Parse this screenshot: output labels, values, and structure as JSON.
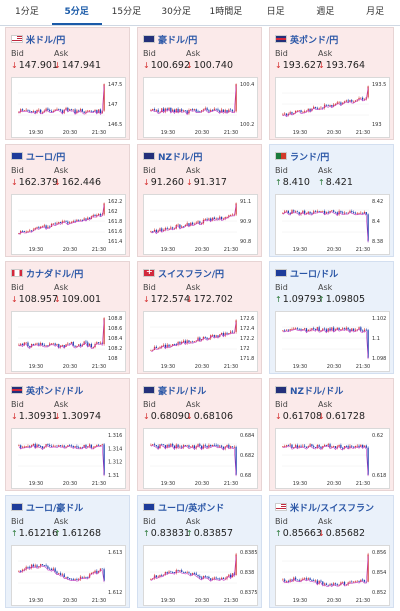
{
  "tabs": [
    "1分足",
    "5分足",
    "15分足",
    "30分足",
    "1時間足",
    "日足",
    "週足",
    "月足"
  ],
  "active_tab": "5分足",
  "bid_label": "Bid",
  "ask_label": "Ask",
  "x_ticks": [
    "19:30",
    "20:30",
    "21:30"
  ],
  "cards": [
    {
      "flag": "us",
      "name": "米ドル/円",
      "bg": "red",
      "bid": "147.901",
      "ask": "147.941",
      "bid_dir": "down",
      "ask_dir": "down",
      "yticks": [
        "147.5",
        "147",
        "146.5"
      ],
      "trend": "flat-spike"
    },
    {
      "flag": "au",
      "name": "豪ドル/円",
      "bg": "red",
      "bid": "100.692",
      "ask": "100.740",
      "bid_dir": "down",
      "ask_dir": "down",
      "yticks": [
        "100.4",
        "100.2"
      ],
      "trend": "flat-spike"
    },
    {
      "flag": "gb",
      "name": "英ポンド/円",
      "bg": "red",
      "bid": "193.627",
      "ask": "193.764",
      "bid_dir": "down",
      "ask_dir": "down",
      "yticks": [
        "193.5",
        "193"
      ],
      "trend": "up"
    },
    {
      "flag": "eu",
      "name": "ユーロ/円",
      "bg": "red",
      "bid": "162.379",
      "ask": "162.446",
      "bid_dir": "down",
      "ask_dir": "down",
      "yticks": [
        "162.2",
        "162",
        "161.8",
        "161.6",
        "161.4"
      ],
      "trend": "up"
    },
    {
      "flag": "nz",
      "name": "NZドル/円",
      "bg": "red",
      "bid": "91.260",
      "ask": "91.317",
      "bid_dir": "down",
      "ask_dir": "down",
      "yticks": [
        "91.1",
        "90.9",
        "90.8"
      ],
      "trend": "up"
    },
    {
      "flag": "za",
      "name": "ランド/円",
      "bg": "blue",
      "bid": "8.410",
      "ask": "8.421",
      "bid_dir": "up",
      "ask_dir": "up",
      "yticks": [
        "8.42",
        "8.4",
        "8.38"
      ],
      "trend": "flat-drop"
    },
    {
      "flag": "ca",
      "name": "カナダドル/円",
      "bg": "red",
      "bid": "108.957",
      "ask": "109.001",
      "bid_dir": "down",
      "ask_dir": "down",
      "yticks": [
        "108.8",
        "108.6",
        "108.4",
        "108.2",
        "108"
      ],
      "trend": "flat-spike"
    },
    {
      "flag": "ch",
      "name": "スイスフラン/円",
      "bg": "red",
      "bid": "172.574",
      "ask": "172.702",
      "bid_dir": "down",
      "ask_dir": "down",
      "yticks": [
        "172.6",
        "172.4",
        "172.2",
        "172",
        "171.8"
      ],
      "trend": "up"
    },
    {
      "flag": "eu",
      "name": "ユーロ/ドル",
      "bg": "blue",
      "bid": "1.09793",
      "ask": "1.09805",
      "bid_dir": "up",
      "ask_dir": "up",
      "yticks": [
        "1.102",
        "1.1",
        "1.098"
      ],
      "trend": "flat-drop"
    },
    {
      "flag": "gb",
      "name": "英ポンド/ドル",
      "bg": "red",
      "bid": "1.30931",
      "ask": "1.30974",
      "bid_dir": "down",
      "ask_dir": "down",
      "yticks": [
        "1.316",
        "1.314",
        "1.312",
        "1.31"
      ],
      "trend": "flat-drop"
    },
    {
      "flag": "au",
      "name": "豪ドル/ドル",
      "bg": "red",
      "bid": "0.68090",
      "ask": "0.68106",
      "bid_dir": "down",
      "ask_dir": "down",
      "yticks": [
        "0.684",
        "0.682",
        "0.68"
      ],
      "trend": "flat-drop"
    },
    {
      "flag": "nz",
      "name": "NZドル/ドル",
      "bg": "red",
      "bid": "0.61708",
      "ask": "0.61728",
      "bid_dir": "down",
      "ask_dir": "down",
      "yticks": [
        "0.62",
        "0.618"
      ],
      "trend": "flat-drop"
    },
    {
      "flag": "eu",
      "name": "ユーロ/豪ドル",
      "bg": "blue",
      "bid": "1.61216",
      "ask": "1.61268",
      "bid_dir": "up",
      "ask_dir": "up",
      "yticks": [
        "1.613",
        "1.612"
      ],
      "trend": "wave"
    },
    {
      "flag": "eu",
      "name": "ユーロ/英ポンド",
      "bg": "blue",
      "bid": "0.83831",
      "ask": "0.83857",
      "bid_dir": "up",
      "ask_dir": "up",
      "yticks": [
        "0.8385",
        "0.838",
        "0.8375"
      ],
      "trend": "wave-up"
    },
    {
      "flag": "us",
      "name": "米ドル/スイスフラン",
      "bg": "blue",
      "bid": "0.85663",
      "ask": "0.85682",
      "bid_dir": "up",
      "ask_dir": "down",
      "yticks": [
        "0.856",
        "0.854",
        "0.852"
      ],
      "trend": "down-spike"
    }
  ]
}
